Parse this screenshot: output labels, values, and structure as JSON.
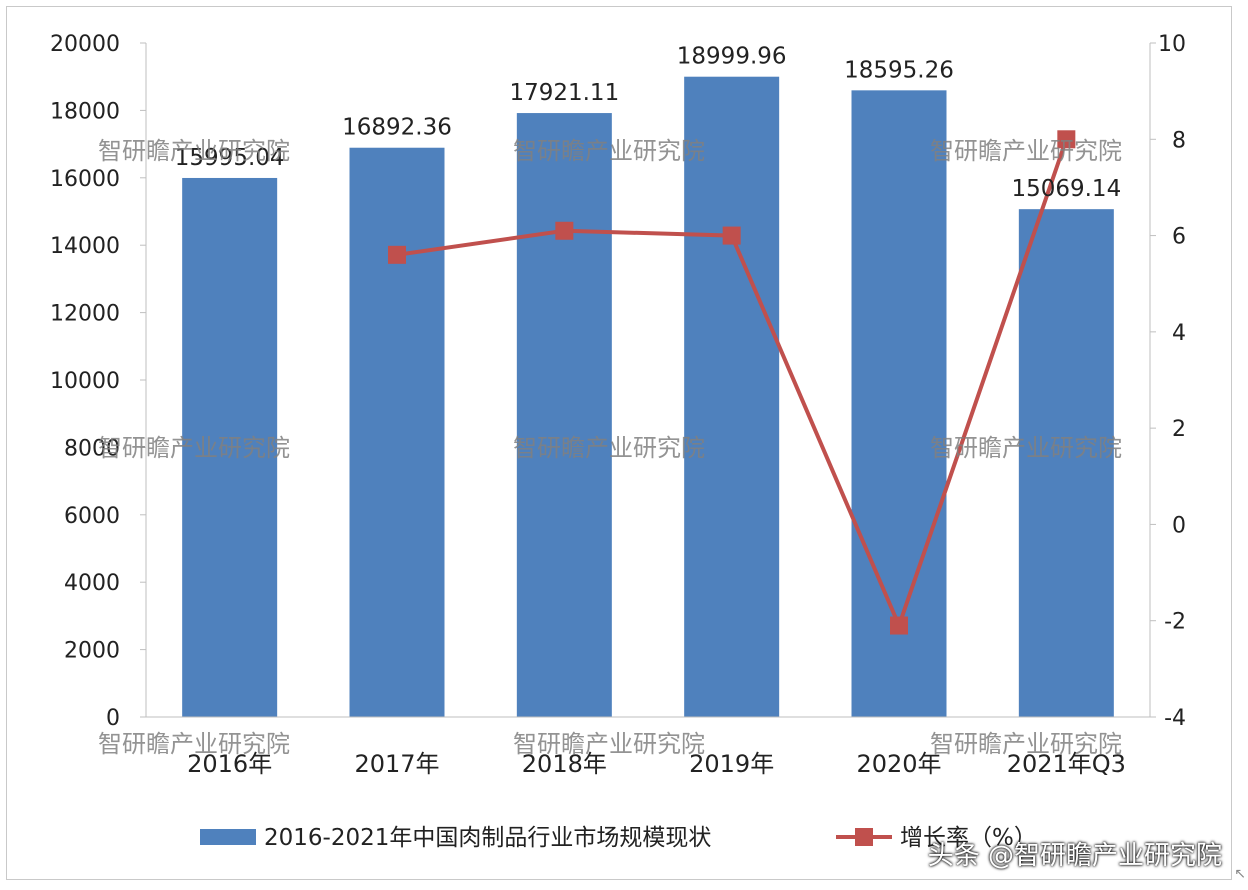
{
  "chart_data": {
    "type": "bar",
    "categories": [
      "2016年",
      "2017年",
      "2018年",
      "2019年",
      "2020年",
      "2021年Q3"
    ],
    "series": [
      {
        "name": "2016-2021年中国肉制品行业市场规模现状",
        "type": "bar",
        "axis": "left",
        "values": [
          15995.04,
          16892.36,
          17921.11,
          18999.96,
          18595.26,
          15069.14
        ],
        "labels": [
          "15995.04",
          "16892.36",
          "17921.11",
          "18999.96",
          "18595.26",
          "15069.14"
        ]
      },
      {
        "name": "增长率（%）",
        "type": "line",
        "axis": "right",
        "values": [
          null,
          5.6,
          6.1,
          6.0,
          -2.1,
          8.0
        ]
      }
    ],
    "y_left": {
      "lim": [
        0,
        20000
      ],
      "ticks": [
        "0",
        "2000",
        "4000",
        "6000",
        "8000",
        "10000",
        "12000",
        "14000",
        "16000",
        "18000",
        "20000"
      ]
    },
    "y_right": {
      "lim": [
        -4,
        10
      ],
      "ticks": [
        "-4",
        "-2",
        "0",
        "2",
        "4",
        "6",
        "8",
        "10"
      ]
    },
    "legend_position": "bottom",
    "grid": false,
    "colors": {
      "bar": "#4f81bd",
      "line": "#c0504d"
    }
  },
  "watermarks": {
    "text": "智研瞻产业研究院",
    "corner": "头条 @智研瞻产业研究院"
  }
}
